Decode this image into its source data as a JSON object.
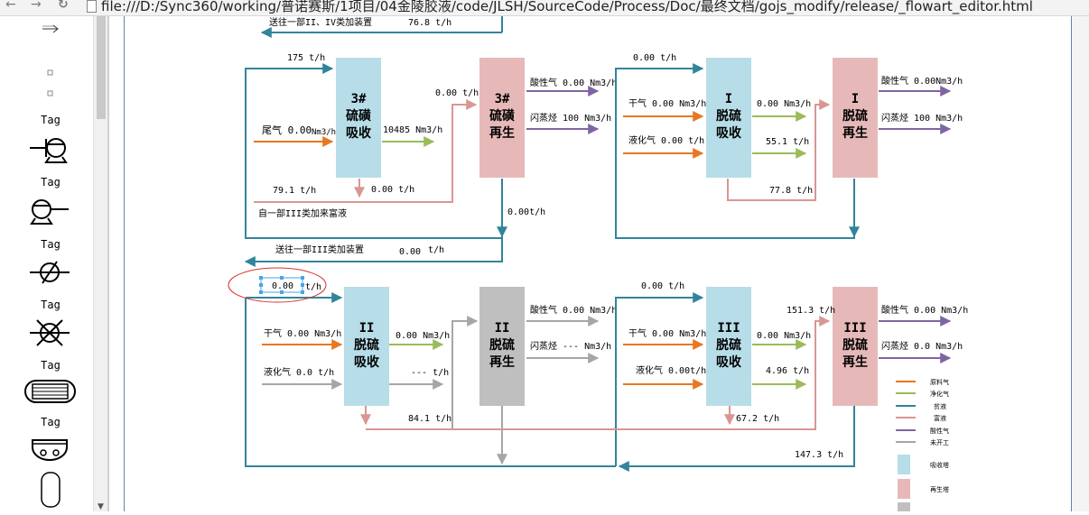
{
  "browser": {
    "back_icon": "arrow-left-icon",
    "forward_icon": "arrow-right-icon",
    "reload_icon": "reload-icon",
    "url": "file:///D:/Sync360/working/普诺赛斯/1项目/04金陵胶液/code/JLSH/SourceCode/Process/Doc/最终文档/gojs_modify/release/_flowart_editor.html"
  },
  "palette": {
    "tag_label": "Tag",
    "items": [
      {
        "icon": "arrow-right-icon"
      },
      {
        "icon": "small-square-icon"
      },
      {
        "icon": "small-square-icon"
      },
      {
        "label": "Tag",
        "icon": "pump-left-icon"
      },
      {
        "label": "Tag",
        "icon": "pump-right-icon"
      },
      {
        "label": "Tag",
        "icon": "valve-slash-icon"
      },
      {
        "label": "Tag",
        "icon": "valve-cross-icon"
      },
      {
        "label": "Tag",
        "icon": "heat-exchanger-icon"
      },
      {
        "label": "Tag",
        "icon": "drum-icon"
      },
      {
        "icon": "vessel-icon"
      }
    ]
  },
  "diagram": {
    "top_partial": {
      "text": "送往一部II、IV类加装置",
      "value": "76.8 t/h"
    },
    "unit3": {
      "absorber": [
        "3#",
        "硫磺",
        "吸收"
      ],
      "regenerator": [
        "3#",
        "硫磺",
        "再生"
      ],
      "in_flow": "175 t/h",
      "tail_gas": "尾气 0.00",
      "tail_gas_unit": "Nm3/h",
      "out_gas": "10485 Nm3/h",
      "rich_in": "0.00 t/h",
      "acid_gas": "酸性气 0.00 Nm3/h",
      "flash_gas": "闪蒸烃 100 Nm3/h",
      "from_line": "79.1 t/h",
      "rich_out": "0.00 t/h",
      "from_text": "自一部III类加来富液",
      "regen_out": "0.00t/h",
      "send_text": "送往一部III类加装置",
      "send_value": "0.00",
      "send_unit": "t/h"
    },
    "unit1": {
      "absorber": [
        "I",
        "脱硫",
        "吸收"
      ],
      "regenerator": [
        "I",
        "脱硫",
        "再生"
      ],
      "in_flow": "0.00  t/h",
      "dry_gas": "干气 0.00 Nm3/h",
      "lpg": "液化气 0.00 t/h",
      "out_gas": "0.00 Nm3/h",
      "out_liquid": "55.1 t/h",
      "rich": "77.8 t/h",
      "acid_gas": "酸性气 0.00Nm3/h",
      "flash_gas": "闪蒸烃 100 Nm3/h"
    },
    "unit2": {
      "absorber": [
        "II",
        "脱硫",
        "吸收"
      ],
      "regenerator": [
        "II",
        "脱硫",
        "再生"
      ],
      "selected_value": "0.00",
      "selected_unit": "t/h",
      "dry_gas": "干气  0.00 Nm3/h",
      "lpg": "液化气 0.0 t/h",
      "out_gas": "0.00 Nm3/h",
      "out_liquid": "--- t/h",
      "rich": "84.1 t/h",
      "acid_gas": "酸性气 0.00 Nm3/h",
      "flash_gas": "闪蒸烃 --- Nm3/h"
    },
    "unit3b": {
      "absorber": [
        "III",
        "脱硫",
        "吸收"
      ],
      "regenerator": [
        "III",
        "脱硫",
        "再生"
      ],
      "in_flow": "0.00 t/h",
      "dry_gas": "干气  0.00  Nm3/h",
      "lpg": "液化气 0.00t/h",
      "out_gas": "0.00 Nm3/h",
      "out_liquid": "4.96 t/h",
      "rich": "67.2 t/h",
      "regen_in": "151.3 t/h",
      "acid_gas": "酸性气 0.00 Nm3/h",
      "flash_gas": "闪蒸烃 0.0  Nm3/h",
      "return": "147.3 t/h"
    },
    "legend": [
      {
        "label": "原料气",
        "color": "#e87722"
      },
      {
        "label": "净化气",
        "color": "#9bbb59"
      },
      {
        "label": "贫液",
        "color": "#31849b"
      },
      {
        "label": "富液",
        "color": "#d99694"
      },
      {
        "label": "酸性气",
        "color": "#8064a2"
      },
      {
        "label": "未开工",
        "color": "#a6a6a6"
      }
    ],
    "legend_boxes": [
      {
        "label": "吸收塔",
        "color": "#b7dde8"
      },
      {
        "label": "再生塔",
        "color": "#e6b9b8"
      },
      {
        "label": "",
        "color": "#bfbfbf"
      }
    ],
    "colors": {
      "lean": "#31849b",
      "rich": "#d99694",
      "feed": "#e87722",
      "clean": "#9bbb59",
      "acid": "#8064a2",
      "idle": "#a6a6a6",
      "absorber": "#b7dde8",
      "regenerator": "#e6b9b8",
      "inactive": "#bfbfbf",
      "selection": "#4aa3e8",
      "highlight": "#d9342b"
    }
  }
}
